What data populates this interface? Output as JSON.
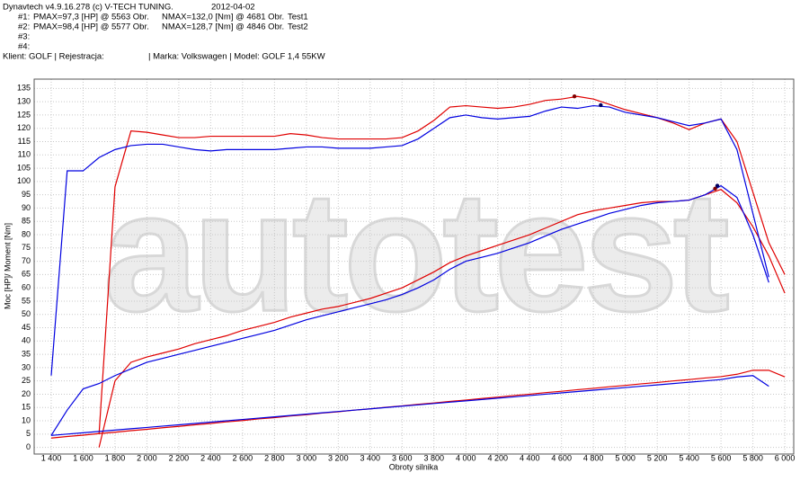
{
  "header": {
    "app": "Dynavtech v4.9.16.278 (c) V-TECH TUNING.",
    "date": "2012-04-02",
    "tests": [
      {
        "id": "#1:",
        "pmax": "PMAX=97,3 [HP] @ 5563 Obr.",
        "nmax": "NMAX=132,0 [Nm] @ 4681 Obr.",
        "name": "Test1"
      },
      {
        "id": "#2:",
        "pmax": "PMAX=98,4 [HP] @ 5577 Obr.",
        "nmax": "NMAX=128,7 [Nm] @ 4846 Obr.",
        "name": "Test2"
      },
      {
        "id": "#3:"
      },
      {
        "id": "#4:"
      }
    ],
    "client": "Klient: GOLF | Rejestracja:",
    "car": "| Marka: Volkswagen | Model: GOLF 1,4 55KW"
  },
  "chart_data": {
    "type": "line",
    "watermark": "autotest",
    "x_label": "Obroty silnika",
    "y_label": "Moc [HP]/ Moment [Nm]",
    "xlim": [
      1293,
      6056
    ],
    "ylim": [
      -2.5,
      138.5
    ],
    "grid": true,
    "xticks": [
      {
        "value": 1400,
        "label": "1 400"
      },
      {
        "value": 1600,
        "label": "1 600"
      },
      {
        "value": 1800,
        "label": "1 800"
      },
      {
        "value": 2000,
        "label": "2 000"
      },
      {
        "value": 2200,
        "label": "2 200"
      },
      {
        "value": 2400,
        "label": "2 400"
      },
      {
        "value": 2600,
        "label": "2 600"
      },
      {
        "value": 2800,
        "label": "2 800"
      },
      {
        "value": 3000,
        "label": "3 000"
      },
      {
        "value": 3200,
        "label": "3 200"
      },
      {
        "value": 3400,
        "label": "3 400"
      },
      {
        "value": 3600,
        "label": "3 600"
      },
      {
        "value": 3800,
        "label": "3 800"
      },
      {
        "value": 4000,
        "label": "4 000"
      },
      {
        "value": 4200,
        "label": "4 200"
      },
      {
        "value": 4400,
        "label": "4 400"
      },
      {
        "value": 4600,
        "label": "4 600"
      },
      {
        "value": 4800,
        "label": "4 800"
      },
      {
        "value": 5000,
        "label": "5 000"
      },
      {
        "value": 5200,
        "label": "5 200"
      },
      {
        "value": 5400,
        "label": "5 400"
      },
      {
        "value": 5600,
        "label": "5 600"
      },
      {
        "value": 5800,
        "label": "5 800"
      },
      {
        "value": 6000,
        "label": "6 000"
      }
    ],
    "yticks": [
      0,
      5,
      10,
      15,
      20,
      25,
      30,
      35,
      40,
      45,
      50,
      55,
      60,
      65,
      70,
      75,
      80,
      85,
      90,
      95,
      100,
      105,
      110,
      115,
      120,
      125,
      130,
      135
    ],
    "x": [
      1400,
      1500,
      1600,
      1700,
      1800,
      1900,
      2000,
      2100,
      2200,
      2300,
      2400,
      2500,
      2600,
      2700,
      2800,
      2900,
      3000,
      3100,
      3200,
      3300,
      3400,
      3500,
      3600,
      3700,
      3800,
      3900,
      4000,
      4100,
      4200,
      4300,
      4400,
      4500,
      4600,
      4700,
      4800,
      4900,
      5000,
      5100,
      5200,
      5300,
      5400,
      5500,
      5600,
      5700,
      5800,
      5900,
      6000
    ],
    "series": [
      {
        "color": "#e00000",
        "values": [
          null,
          null,
          null,
          5,
          98,
          119,
          118.5,
          117.5,
          116.5,
          116.5,
          117,
          117,
          117,
          117,
          117,
          118,
          117.5,
          116.5,
          116,
          116,
          116,
          116,
          116.5,
          119,
          123,
          128,
          128.5,
          128,
          127.5,
          128,
          129,
          130.5,
          131,
          132,
          131,
          129,
          127,
          125.5,
          124,
          122,
          119.5,
          122,
          123.5,
          115,
          96,
          77,
          65
        ]
      },
      {
        "color": "#e00000",
        "values": [
          null,
          null,
          null,
          0,
          25,
          32,
          34,
          35.5,
          37,
          39,
          40.5,
          42,
          44,
          45.5,
          47,
          49,
          50.5,
          52,
          53,
          54.5,
          56,
          58,
          60,
          63,
          66,
          69.5,
          72,
          74,
          76,
          78,
          80,
          82.5,
          85,
          87.5,
          89,
          90,
          91,
          92,
          92.5,
          92.5,
          93,
          95,
          97,
          92,
          83,
          72,
          58
        ]
      },
      {
        "color": "#e00000",
        "values": [
          3.5,
          4.1,
          4.6,
          5.2,
          5.7,
          6.3,
          6.8,
          7.4,
          7.9,
          8.5,
          9.0,
          9.6,
          10.1,
          10.7,
          11.2,
          11.8,
          12.3,
          12.9,
          13.4,
          14.0,
          14.5,
          15.1,
          15.6,
          16.2,
          16.7,
          17.3,
          17.8,
          18.4,
          18.9,
          19.5,
          20.0,
          20.6,
          21.1,
          21.7,
          22.2,
          22.8,
          23.3,
          23.9,
          24.4,
          25.0,
          25.5,
          26.1,
          26.6,
          27.5,
          29,
          29,
          26.5
        ]
      },
      {
        "color": "#0000e0",
        "values": [
          27,
          104,
          104,
          109,
          112,
          113.5,
          114,
          114,
          113,
          112,
          111.5,
          112,
          112,
          112,
          112,
          112.5,
          113,
          113,
          112.5,
          112.5,
          112.5,
          113,
          113.5,
          116,
          120,
          124,
          125,
          124,
          123.5,
          124,
          124.5,
          126.5,
          128,
          127.5,
          128.5,
          128,
          126,
          125,
          124,
          122.5,
          121,
          122,
          123.5,
          112,
          88,
          64,
          null
        ]
      },
      {
        "color": "#0000e0",
        "values": [
          4.5,
          14,
          22,
          24,
          27,
          29.5,
          32,
          33.5,
          35,
          36.5,
          38,
          39.5,
          41,
          42.5,
          44,
          46,
          48,
          49.5,
          51,
          52.5,
          54,
          55.5,
          57.5,
          60,
          63,
          67,
          70,
          71.5,
          73,
          75,
          77,
          79.5,
          82,
          84,
          86,
          88,
          89.5,
          91,
          92,
          92.5,
          93,
          95,
          98.4,
          94,
          80,
          62,
          null
        ]
      },
      {
        "color": "#0000e0",
        "values": [
          4.5,
          5.0,
          5.5,
          6.0,
          6.5,
          7.0,
          7.5,
          8.0,
          8.5,
          9.0,
          9.5,
          10.0,
          10.5,
          11.0,
          11.5,
          12.0,
          12.5,
          13.0,
          13.5,
          14.0,
          14.5,
          15.0,
          15.5,
          16.0,
          16.5,
          17.0,
          17.5,
          18.0,
          18.5,
          19.0,
          19.5,
          20.0,
          20.5,
          21.0,
          21.5,
          22.0,
          22.5,
          23.0,
          23.5,
          24.0,
          24.5,
          25.0,
          25.5,
          26.5,
          27,
          23,
          null
        ]
      }
    ],
    "peaks": [
      {
        "x": 4681,
        "y": 132.0,
        "color": "#800000"
      },
      {
        "x": 4846,
        "y": 128.7,
        "color": "#000060"
      },
      {
        "x": 5563,
        "y": 97.3,
        "color": "#800000"
      },
      {
        "x": 5577,
        "y": 98.4,
        "color": "#000060"
      }
    ]
  }
}
